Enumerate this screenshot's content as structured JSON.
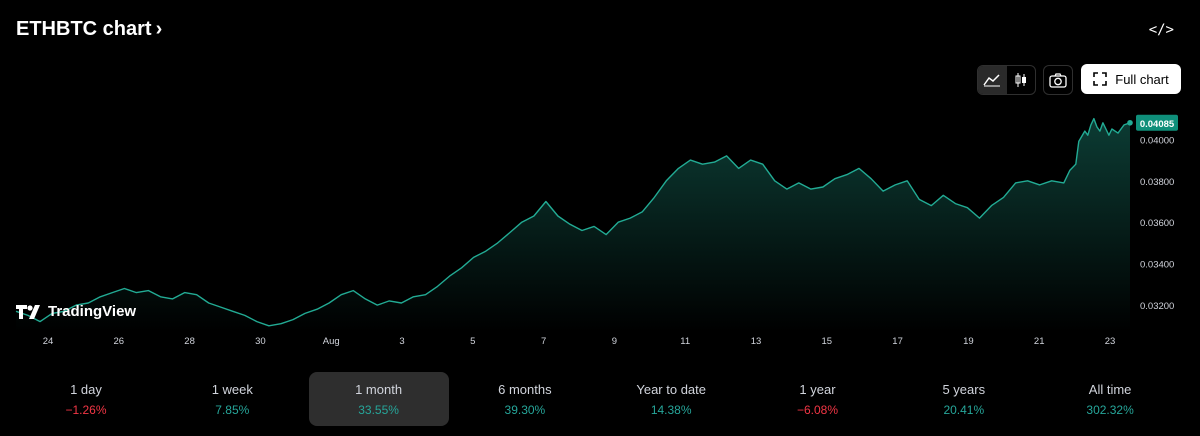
{
  "header": {
    "title": "ETHBTC chart",
    "chevron": "›",
    "embed_icon": "</>"
  },
  "toolbar": {
    "chart_type_area_icon": "area-chart-icon",
    "chart_type_candle_icon": "candlestick-icon",
    "snapshot_icon": "camera-icon",
    "full_chart_label": "Full chart"
  },
  "brand": {
    "name": "TradingView"
  },
  "chart_data": {
    "type": "area",
    "symbol": "ETHBTC",
    "x_ticks": [
      "24",
      "26",
      "28",
      "30",
      "Aug",
      "3",
      "5",
      "7",
      "9",
      "11",
      "13",
      "15",
      "17",
      "19",
      "21",
      "23"
    ],
    "y_ticks": [
      "0.03200",
      "0.03400",
      "0.03600",
      "0.03800",
      "0.04000"
    ],
    "ylim": [
      0.0307,
      0.0419
    ],
    "last_price": "0.04085",
    "points": [
      [
        0,
        0.0317
      ],
      [
        4,
        0.0315
      ],
      [
        8,
        0.0312
      ],
      [
        12,
        0.0316
      ],
      [
        16,
        0.0317
      ],
      [
        20,
        0.032
      ],
      [
        24,
        0.0321
      ],
      [
        28,
        0.0324
      ],
      [
        32,
        0.0326
      ],
      [
        36,
        0.0328
      ],
      [
        40,
        0.0326
      ],
      [
        44,
        0.0327
      ],
      [
        48,
        0.0324
      ],
      [
        52,
        0.0323
      ],
      [
        56,
        0.0326
      ],
      [
        60,
        0.0325
      ],
      [
        64,
        0.0321
      ],
      [
        68,
        0.0319
      ],
      [
        72,
        0.0317
      ],
      [
        76,
        0.0315
      ],
      [
        80,
        0.0312
      ],
      [
        84,
        0.031
      ],
      [
        88,
        0.0311
      ],
      [
        92,
        0.0313
      ],
      [
        96,
        0.0316
      ],
      [
        100,
        0.0318
      ],
      [
        104,
        0.0321
      ],
      [
        108,
        0.0325
      ],
      [
        112,
        0.0327
      ],
      [
        116,
        0.0323
      ],
      [
        120,
        0.032
      ],
      [
        124,
        0.0322
      ],
      [
        128,
        0.0321
      ],
      [
        132,
        0.0324
      ],
      [
        136,
        0.0325
      ],
      [
        140,
        0.0329
      ],
      [
        144,
        0.0334
      ],
      [
        148,
        0.0338
      ],
      [
        152,
        0.0343
      ],
      [
        156,
        0.0346
      ],
      [
        160,
        0.035
      ],
      [
        164,
        0.0355
      ],
      [
        168,
        0.036
      ],
      [
        172,
        0.0363
      ],
      [
        176,
        0.037
      ],
      [
        180,
        0.0363
      ],
      [
        184,
        0.0359
      ],
      [
        188,
        0.0356
      ],
      [
        192,
        0.0358
      ],
      [
        196,
        0.0354
      ],
      [
        200,
        0.036
      ],
      [
        204,
        0.0362
      ],
      [
        208,
        0.0365
      ],
      [
        212,
        0.0372
      ],
      [
        216,
        0.038
      ],
      [
        220,
        0.0386
      ],
      [
        224,
        0.039
      ],
      [
        228,
        0.0388
      ],
      [
        232,
        0.0389
      ],
      [
        236,
        0.0392
      ],
      [
        240,
        0.0386
      ],
      [
        244,
        0.039
      ],
      [
        248,
        0.0388
      ],
      [
        252,
        0.038
      ],
      [
        256,
        0.0376
      ],
      [
        260,
        0.0379
      ],
      [
        264,
        0.0376
      ],
      [
        268,
        0.0377
      ],
      [
        272,
        0.0381
      ],
      [
        276,
        0.0383
      ],
      [
        280,
        0.0386
      ],
      [
        284,
        0.0381
      ],
      [
        288,
        0.0375
      ],
      [
        292,
        0.0378
      ],
      [
        296,
        0.038
      ],
      [
        300,
        0.0371
      ],
      [
        304,
        0.0368
      ],
      [
        308,
        0.0373
      ],
      [
        312,
        0.0369
      ],
      [
        316,
        0.0367
      ],
      [
        320,
        0.0362
      ],
      [
        324,
        0.0368
      ],
      [
        328,
        0.0372
      ],
      [
        332,
        0.0379
      ],
      [
        336,
        0.038
      ],
      [
        340,
        0.0378
      ],
      [
        344,
        0.038
      ],
      [
        348,
        0.0379
      ],
      [
        350,
        0.0385
      ],
      [
        352,
        0.0388
      ],
      [
        353,
        0.0399
      ],
      [
        355,
        0.0404
      ],
      [
        356,
        0.0402
      ],
      [
        357,
        0.0407
      ],
      [
        358,
        0.041
      ],
      [
        359,
        0.0406
      ],
      [
        360,
        0.0404
      ],
      [
        361,
        0.0408
      ],
      [
        362,
        0.0405
      ],
      [
        363,
        0.0402
      ],
      [
        364,
        0.0405
      ],
      [
        366,
        0.0403
      ],
      [
        368,
        0.0407
      ],
      [
        370,
        0.0408
      ]
    ]
  },
  "periods": [
    {
      "label": "1 day",
      "change": "−1.26%",
      "dir": "neg"
    },
    {
      "label": "1 week",
      "change": "7.85%",
      "dir": "pos"
    },
    {
      "label": "1 month",
      "change": "33.55%",
      "dir": "pos",
      "active": true
    },
    {
      "label": "6 months",
      "change": "39.30%",
      "dir": "pos"
    },
    {
      "label": "Year to date",
      "change": "14.38%",
      "dir": "pos"
    },
    {
      "label": "1 year",
      "change": "−6.08%",
      "dir": "neg"
    },
    {
      "label": "5 years",
      "change": "20.41%",
      "dir": "pos"
    },
    {
      "label": "All time",
      "change": "302.32%",
      "dir": "pos"
    }
  ],
  "colors": {
    "line": "#22ab94",
    "positive": "#26a69a",
    "negative": "#f23645",
    "price_badge": "#0f8f7a"
  }
}
